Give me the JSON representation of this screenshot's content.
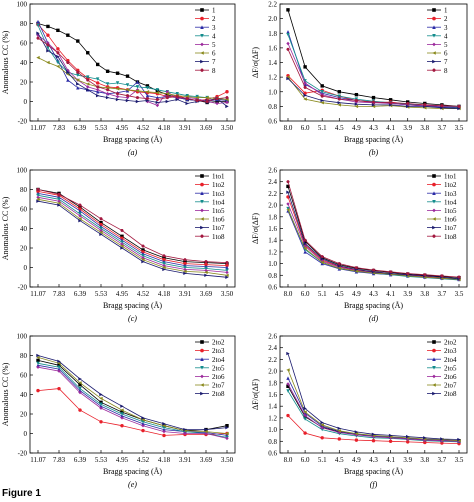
{
  "figure_label": "Figure 1",
  "colors": [
    "#000000",
    "#e8202a",
    "#2b2ba6",
    "#138c8c",
    "#9c2a9c",
    "#8a8a1e",
    "#1a1a6e",
    "#a3183f"
  ],
  "markers": [
    "square",
    "circle",
    "triangle-up",
    "triangle-down",
    "diamond",
    "triangle-left",
    "triangle-right",
    "hexagon"
  ],
  "chart_data": [
    {
      "panel": "(a)",
      "type": "line",
      "ylabel": "Anomalous CC (%)",
      "xlabel": "Bragg spacing (Å)",
      "ylim": [
        -20,
        100
      ],
      "yticks": [
        -20,
        0,
        20,
        40,
        60,
        80,
        100
      ],
      "xtick_labels": [
        "11.07",
        "7.83",
        "6.39",
        "5.53",
        "4.95",
        "4.52",
        "4.18",
        "3.91",
        "3.69",
        "3.50"
      ],
      "legend": "top-right",
      "series": [
        {
          "name": "1",
          "values": [
            80,
            77,
            73,
            68,
            62,
            50,
            38,
            31,
            29,
            26,
            20,
            16,
            11,
            7,
            4,
            2,
            1,
            -1,
            0,
            0
          ]
        },
        {
          "name": "2",
          "values": [
            79,
            68,
            54,
            42,
            32,
            24,
            19,
            15,
            14,
            12,
            10,
            9,
            8,
            5,
            6,
            3,
            1,
            2,
            5,
            10
          ]
        },
        {
          "name": "3",
          "values": [
            82,
            60,
            42,
            22,
            14,
            12,
            10,
            8,
            9,
            11,
            20,
            6,
            4,
            5,
            4,
            2,
            1,
            0,
            2,
            1
          ]
        },
        {
          "name": "4",
          "values": [
            78,
            55,
            40,
            30,
            27,
            25,
            23,
            18,
            19,
            17,
            15,
            14,
            12,
            10,
            8,
            6,
            5,
            4,
            3,
            2
          ]
        },
        {
          "name": "5",
          "values": [
            68,
            60,
            50,
            32,
            22,
            15,
            12,
            8,
            5,
            4,
            12,
            0,
            -4,
            10,
            3,
            4,
            3,
            0,
            -2,
            -1
          ]
        },
        {
          "name": "6",
          "values": [
            45,
            40,
            36,
            28,
            22,
            18,
            15,
            14,
            13,
            12,
            11,
            10,
            9,
            8,
            6,
            5,
            4,
            4,
            3,
            2
          ]
        },
        {
          "name": "7",
          "values": [
            70,
            52,
            46,
            30,
            18,
            12,
            6,
            4,
            2,
            1,
            0,
            1,
            -1,
            0,
            2,
            -2,
            0,
            1,
            3,
            -5
          ]
        },
        {
          "name": "8",
          "values": [
            65,
            58,
            50,
            40,
            30,
            22,
            15,
            12,
            8,
            6,
            4,
            3,
            2,
            4,
            5,
            3,
            1,
            0,
            3,
            4
          ]
        }
      ]
    },
    {
      "panel": "(b)",
      "type": "line",
      "ylabel": "ΔF/σ(ΔF)",
      "xlabel": "Bragg spacing (Å)",
      "ylim": [
        0.6,
        2.2
      ],
      "yticks": [
        0.6,
        0.8,
        1.0,
        1.2,
        1.4,
        1.6,
        1.8,
        2.0,
        2.2
      ],
      "xtick_labels": [
        "8.0",
        "6.0",
        "5.1",
        "4.5",
        "4.9",
        "4.3",
        "4.1",
        "3.9",
        "3.8",
        "3.7",
        "3.5"
      ],
      "legend": "top-right",
      "series": [
        {
          "name": "1",
          "values": [
            2.12,
            1.34,
            1.08,
            1.0,
            0.96,
            0.92,
            0.89,
            0.86,
            0.84,
            0.82,
            0.8
          ]
        },
        {
          "name": "2",
          "values": [
            1.22,
            0.98,
            1.02,
            0.94,
            0.88,
            0.85,
            0.86,
            0.83,
            0.82,
            0.8,
            0.78
          ]
        },
        {
          "name": "3",
          "values": [
            1.82,
            1.1,
            0.98,
            0.92,
            0.88,
            0.86,
            0.84,
            0.82,
            0.8,
            0.79,
            0.78
          ]
        },
        {
          "name": "4",
          "values": [
            1.78,
            1.15,
            1.0,
            0.94,
            0.9,
            0.87,
            0.85,
            0.83,
            0.81,
            0.8,
            0.79
          ]
        },
        {
          "name": "5",
          "values": [
            1.66,
            1.12,
            0.96,
            0.9,
            0.86,
            0.85,
            0.84,
            0.82,
            0.81,
            0.8,
            0.8
          ]
        },
        {
          "name": "6",
          "values": [
            1.2,
            0.9,
            0.85,
            0.82,
            0.8,
            0.8,
            0.81,
            0.79,
            0.78,
            0.77,
            0.77
          ]
        },
        {
          "name": "7",
          "values": [
            1.18,
            0.95,
            0.88,
            0.85,
            0.83,
            0.82,
            0.82,
            0.8,
            0.8,
            0.78,
            0.77
          ]
        },
        {
          "name": "8",
          "values": [
            1.58,
            1.06,
            0.94,
            0.9,
            0.88,
            0.86,
            0.85,
            0.84,
            0.82,
            0.81,
            0.8
          ]
        }
      ]
    },
    {
      "panel": "(c)",
      "type": "line",
      "ylabel": "Anomalous CC (%)",
      "xlabel": "Bragg spacing (Å)",
      "ylim": [
        -20,
        100
      ],
      "yticks": [
        -20,
        0,
        20,
        40,
        60,
        80,
        100
      ],
      "xtick_labels": [
        "11.07",
        "7.83",
        "6.39",
        "5.53",
        "4.95",
        "4.52",
        "4.18",
        "3.91",
        "3.69",
        "3.50"
      ],
      "legend": "top-right",
      "series": [
        {
          "name": "1to1",
          "values": [
            80,
            76,
            62,
            46,
            32,
            18,
            10,
            6,
            5,
            4
          ]
        },
        {
          "name": "1to2",
          "values": [
            78,
            74,
            60,
            44,
            30,
            16,
            8,
            4,
            3,
            2
          ]
        },
        {
          "name": "1to3",
          "values": [
            76,
            72,
            58,
            42,
            28,
            14,
            6,
            2,
            1,
            0
          ]
        },
        {
          "name": "1to4",
          "values": [
            74,
            70,
            55,
            40,
            26,
            12,
            4,
            0,
            -1,
            -3
          ]
        },
        {
          "name": "1to5",
          "values": [
            72,
            68,
            53,
            38,
            24,
            10,
            2,
            -2,
            -3,
            -5
          ]
        },
        {
          "name": "1to6",
          "values": [
            70,
            66,
            50,
            36,
            22,
            8,
            0,
            -4,
            -5,
            -8
          ]
        },
        {
          "name": "1to7",
          "values": [
            68,
            64,
            48,
            34,
            20,
            6,
            -2,
            -6,
            -8,
            -10
          ]
        },
        {
          "name": "1to8",
          "values": [
            80,
            75,
            64,
            50,
            38,
            22,
            12,
            8,
            6,
            5
          ]
        }
      ]
    },
    {
      "panel": "(d)",
      "type": "line",
      "ylabel": "ΔF/σ(ΔF)",
      "xlabel": "Bragg spacing (Å)",
      "ylim": [
        0.6,
        2.6
      ],
      "yticks": [
        0.6,
        0.8,
        1.0,
        1.2,
        1.4,
        1.6,
        1.8,
        2.0,
        2.2,
        2.4,
        2.6
      ],
      "xtick_labels": [
        "8.0",
        "6.0",
        "5.1",
        "4.5",
        "4.9",
        "4.3",
        "4.1",
        "3.9",
        "3.8",
        "3.7",
        "3.5"
      ],
      "legend": "top-right",
      "series": [
        {
          "name": "1to1",
          "values": [
            2.32,
            1.38,
            1.1,
            0.98,
            0.92,
            0.88,
            0.85,
            0.82,
            0.8,
            0.78,
            0.76
          ]
        },
        {
          "name": "1to2",
          "values": [
            2.14,
            1.32,
            1.06,
            0.95,
            0.89,
            0.86,
            0.83,
            0.8,
            0.78,
            0.76,
            0.74
          ]
        },
        {
          "name": "1to3",
          "values": [
            1.9,
            1.2,
            1.0,
            0.91,
            0.86,
            0.83,
            0.81,
            0.79,
            0.77,
            0.75,
            0.73
          ]
        },
        {
          "name": "1to4",
          "values": [
            1.94,
            1.24,
            1.02,
            0.92,
            0.87,
            0.84,
            0.81,
            0.78,
            0.76,
            0.74,
            0.72
          ]
        },
        {
          "name": "1to5",
          "values": [
            2.02,
            1.3,
            1.04,
            0.94,
            0.88,
            0.85,
            0.82,
            0.8,
            0.77,
            0.75,
            0.73
          ]
        },
        {
          "name": "1to6",
          "values": [
            1.92,
            1.26,
            1.02,
            0.92,
            0.87,
            0.84,
            0.82,
            0.79,
            0.77,
            0.75,
            0.73
          ]
        },
        {
          "name": "1to7",
          "values": [
            2.22,
            1.34,
            1.08,
            0.96,
            0.9,
            0.86,
            0.83,
            0.81,
            0.79,
            0.77,
            0.74
          ]
        },
        {
          "name": "1to8",
          "values": [
            2.4,
            1.4,
            1.12,
            1.0,
            0.93,
            0.89,
            0.86,
            0.83,
            0.81,
            0.79,
            0.77
          ]
        }
      ]
    },
    {
      "panel": "(e)",
      "type": "line",
      "ylabel": "Anomalous CC (%)",
      "xlabel": "Bragg spacing (Å)",
      "ylim": [
        -20,
        100
      ],
      "yticks": [
        -20,
        0,
        20,
        40,
        60,
        80,
        100
      ],
      "xtick_labels": [
        "11.07",
        "7.83",
        "6.39",
        "5.53",
        "4.95",
        "4.52",
        "4.18",
        "3.91",
        "3.69",
        "3.50"
      ],
      "legend": "top-right",
      "series": [
        {
          "name": "2to2",
          "values": [
            75,
            70,
            50,
            32,
            22,
            14,
            8,
            3,
            4,
            8
          ]
        },
        {
          "name": "2to3",
          "values": [
            44,
            46,
            24,
            12,
            8,
            3,
            -2,
            -1,
            -1,
            0
          ]
        },
        {
          "name": "2to4",
          "values": [
            70,
            66,
            44,
            28,
            18,
            10,
            4,
            2,
            1,
            -2
          ]
        },
        {
          "name": "2to5",
          "values": [
            72,
            68,
            46,
            30,
            20,
            12,
            6,
            2,
            0,
            -4
          ]
        },
        {
          "name": "2to6",
          "values": [
            68,
            64,
            42,
            26,
            16,
            8,
            2,
            0,
            0,
            -5
          ]
        },
        {
          "name": "2to7",
          "values": [
            78,
            72,
            52,
            36,
            24,
            14,
            8,
            3,
            2,
            0
          ]
        },
        {
          "name": "2to8",
          "values": [
            80,
            74,
            56,
            40,
            28,
            16,
            10,
            4,
            4,
            6
          ]
        }
      ]
    },
    {
      "panel": "(f)",
      "type": "line",
      "ylabel": "ΔF/σ(ΔF)",
      "xlabel": "Bragg spacing (Å)",
      "ylim": [
        0.6,
        2.6
      ],
      "yticks": [
        0.6,
        0.8,
        1.0,
        1.2,
        1.4,
        1.6,
        1.8,
        2.0,
        2.2,
        2.4,
        2.6
      ],
      "xtick_labels": [
        "8.0",
        "6.0",
        "5.1",
        "4.5",
        "4.9",
        "4.3",
        "4.1",
        "3.9",
        "3.8",
        "3.7",
        "3.5"
      ],
      "legend": "top-right",
      "series": [
        {
          "name": "2to2",
          "values": [
            1.74,
            1.22,
            1.04,
            0.96,
            0.92,
            0.89,
            0.87,
            0.85,
            0.83,
            0.82,
            0.81
          ]
        },
        {
          "name": "2to3",
          "values": [
            1.24,
            0.94,
            0.86,
            0.84,
            0.82,
            0.81,
            0.8,
            0.79,
            0.78,
            0.77,
            0.76
          ]
        },
        {
          "name": "2to4",
          "values": [
            1.88,
            1.28,
            1.06,
            0.97,
            0.92,
            0.89,
            0.87,
            0.85,
            0.83,
            0.82,
            0.8
          ]
        },
        {
          "name": "2to5",
          "values": [
            1.66,
            1.18,
            1.0,
            0.93,
            0.89,
            0.86,
            0.85,
            0.83,
            0.81,
            0.8,
            0.79
          ]
        },
        {
          "name": "2to6",
          "values": [
            1.78,
            1.24,
            1.03,
            0.95,
            0.91,
            0.88,
            0.86,
            0.84,
            0.82,
            0.81,
            0.8
          ]
        },
        {
          "name": "2to7",
          "values": [
            2.02,
            1.3,
            1.08,
            0.98,
            0.93,
            0.9,
            0.88,
            0.86,
            0.84,
            0.83,
            0.81
          ]
        },
        {
          "name": "2to8",
          "values": [
            2.3,
            1.36,
            1.12,
            1.02,
            0.96,
            0.92,
            0.9,
            0.88,
            0.86,
            0.84,
            0.83
          ]
        }
      ]
    }
  ]
}
